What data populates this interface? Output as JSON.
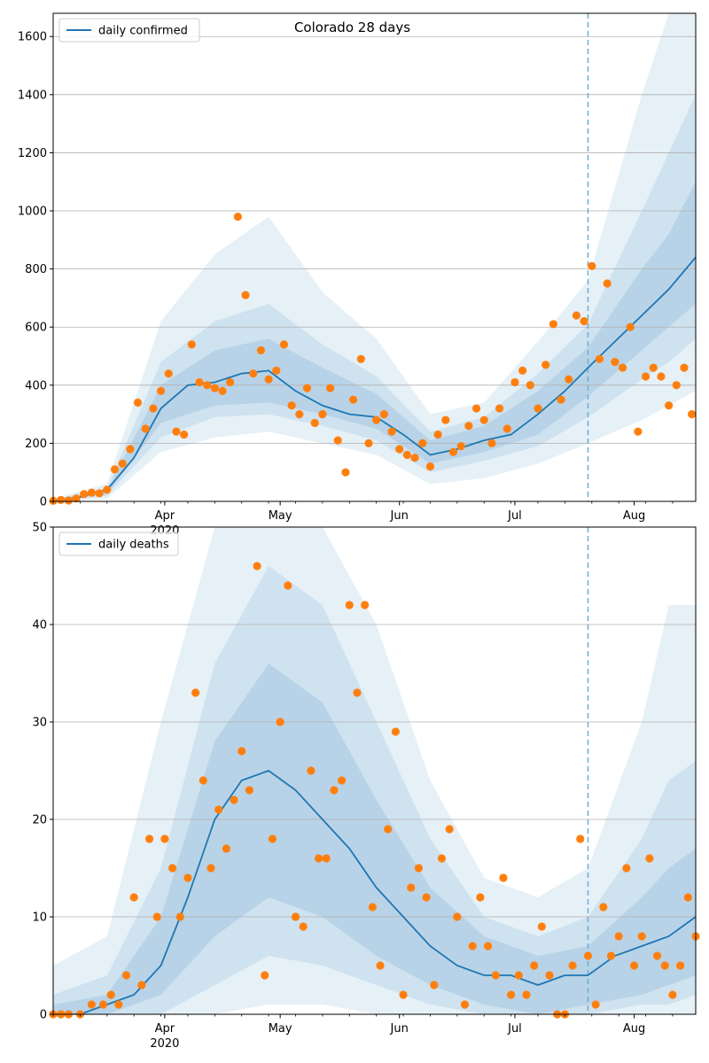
{
  "figure": {
    "title": "Colorado 28 days"
  },
  "colors": {
    "model_line": "#1f77b4",
    "observed_points": "#ff7f0e",
    "band_fill": "#1f77b4",
    "grid": "#b0b0b0",
    "marker_line": "#6baed6"
  },
  "chart_data": [
    {
      "type": "line",
      "panel": "top",
      "title": "Colorado 28 days",
      "xlabel": "",
      "ylabel": "",
      "ylim": [
        0,
        1680
      ],
      "yticks": [
        0,
        200,
        400,
        600,
        800,
        1000,
        1200,
        1400,
        1600
      ],
      "xlim": [
        "2020-03-03",
        "2020-08-17"
      ],
      "xticks": [
        {
          "date": "2020-04-01",
          "label": "Apr",
          "sublabel": "2020"
        },
        {
          "date": "2020-05-01",
          "label": "May",
          "sublabel": ""
        },
        {
          "date": "2020-06-01",
          "label": "Jun",
          "sublabel": ""
        },
        {
          "date": "2020-07-01",
          "label": "Jul",
          "sublabel": ""
        },
        {
          "date": "2020-08-01",
          "label": "Aug",
          "sublabel": ""
        }
      ],
      "grid": "y",
      "legend": {
        "placement": "upper-left",
        "entries": [
          "daily confirmed"
        ]
      },
      "forecast_start": "2020-07-20",
      "median": {
        "name": "daily confirmed",
        "x": [
          "2020-03-03",
          "2020-03-10",
          "2020-03-17",
          "2020-03-24",
          "2020-03-31",
          "2020-04-07",
          "2020-04-14",
          "2020-04-21",
          "2020-04-28",
          "2020-05-05",
          "2020-05-12",
          "2020-05-19",
          "2020-05-26",
          "2020-06-02",
          "2020-06-09",
          "2020-06-16",
          "2020-06-23",
          "2020-06-30",
          "2020-07-07",
          "2020-07-14",
          "2020-07-20",
          "2020-07-27",
          "2020-08-03",
          "2020-08-10",
          "2020-08-17"
        ],
        "y": [
          2,
          15,
          40,
          150,
          320,
          400,
          410,
          440,
          450,
          380,
          330,
          300,
          290,
          230,
          160,
          180,
          210,
          230,
          300,
          380,
          460,
          550,
          640,
          730,
          840
        ]
      },
      "bands": [
        {
          "label": "outer",
          "x": [
            "2020-03-03",
            "2020-03-17",
            "2020-03-31",
            "2020-04-14",
            "2020-04-28",
            "2020-05-12",
            "2020-05-26",
            "2020-06-09",
            "2020-06-23",
            "2020-07-07",
            "2020-07-20",
            "2020-08-03",
            "2020-08-10",
            "2020-08-17"
          ],
          "upper": [
            10,
            60,
            620,
            850,
            980,
            720,
            560,
            300,
            340,
            550,
            760,
            1400,
            1680,
            1680
          ],
          "lower": [
            0,
            10,
            170,
            220,
            240,
            200,
            160,
            60,
            80,
            130,
            200,
            280,
            330,
            380
          ]
        },
        {
          "label": "middle",
          "x": [
            "2020-03-03",
            "2020-03-17",
            "2020-03-31",
            "2020-04-14",
            "2020-04-28",
            "2020-05-12",
            "2020-05-26",
            "2020-06-09",
            "2020-06-23",
            "2020-07-07",
            "2020-07-20",
            "2020-08-03",
            "2020-08-10",
            "2020-08-17"
          ],
          "upper": [
            6,
            45,
            480,
            620,
            680,
            540,
            430,
            240,
            290,
            440,
            610,
            1000,
            1200,
            1400
          ],
          "lower": [
            0,
            20,
            220,
            290,
            300,
            260,
            210,
            100,
            140,
            190,
            290,
            420,
            480,
            560
          ]
        },
        {
          "label": "inner",
          "x": [
            "2020-03-03",
            "2020-03-17",
            "2020-03-31",
            "2020-04-14",
            "2020-04-28",
            "2020-05-12",
            "2020-05-26",
            "2020-06-09",
            "2020-06-23",
            "2020-07-07",
            "2020-07-20",
            "2020-08-03",
            "2020-08-10",
            "2020-08-17"
          ],
          "upper": [
            4,
            35,
            400,
            520,
            560,
            460,
            370,
            210,
            260,
            380,
            530,
            800,
            920,
            1100
          ],
          "lower": [
            1,
            25,
            270,
            330,
            340,
            300,
            250,
            130,
            170,
            230,
            360,
            520,
            600,
            680
          ]
        }
      ],
      "observed": {
        "x": [
          "2020-03-03",
          "2020-03-05",
          "2020-03-07",
          "2020-03-09",
          "2020-03-11",
          "2020-03-13",
          "2020-03-15",
          "2020-03-17",
          "2020-03-19",
          "2020-03-21",
          "2020-03-23",
          "2020-03-25",
          "2020-03-27",
          "2020-03-29",
          "2020-03-31",
          "2020-04-02",
          "2020-04-04",
          "2020-04-06",
          "2020-04-08",
          "2020-04-10",
          "2020-04-12",
          "2020-04-14",
          "2020-04-16",
          "2020-04-18",
          "2020-04-20",
          "2020-04-22",
          "2020-04-24",
          "2020-04-26",
          "2020-04-28",
          "2020-04-30",
          "2020-05-02",
          "2020-05-04",
          "2020-05-06",
          "2020-05-08",
          "2020-05-10",
          "2020-05-12",
          "2020-05-14",
          "2020-05-16",
          "2020-05-18",
          "2020-05-20",
          "2020-05-22",
          "2020-05-24",
          "2020-05-26",
          "2020-05-28",
          "2020-05-30",
          "2020-06-01",
          "2020-06-03",
          "2020-06-05",
          "2020-06-07",
          "2020-06-09",
          "2020-06-11",
          "2020-06-13",
          "2020-06-15",
          "2020-06-17",
          "2020-06-19",
          "2020-06-21",
          "2020-06-23",
          "2020-06-25",
          "2020-06-27",
          "2020-06-29",
          "2020-07-01",
          "2020-07-03",
          "2020-07-05",
          "2020-07-07",
          "2020-07-09",
          "2020-07-11",
          "2020-07-13",
          "2020-07-15",
          "2020-07-17",
          "2020-07-19",
          "2020-07-21",
          "2020-07-23",
          "2020-07-25",
          "2020-07-27",
          "2020-07-29",
          "2020-07-31",
          "2020-08-02",
          "2020-08-04",
          "2020-08-06",
          "2020-08-08",
          "2020-08-10",
          "2020-08-12",
          "2020-08-14",
          "2020-08-16"
        ],
        "y": [
          2,
          5,
          3,
          10,
          25,
          30,
          28,
          40,
          110,
          130,
          180,
          340,
          250,
          320,
          380,
          440,
          240,
          230,
          540,
          410,
          400,
          390,
          380,
          410,
          980,
          710,
          440,
          520,
          420,
          450,
          540,
          330,
          300,
          390,
          270,
          300,
          390,
          210,
          100,
          350,
          490,
          200,
          280,
          300,
          240,
          180,
          160,
          150,
          200,
          120,
          230,
          280,
          170,
          190,
          260,
          320,
          280,
          200,
          320,
          250,
          410,
          450,
          400,
          320,
          470,
          610,
          350,
          420,
          640,
          620,
          810,
          490,
          750,
          480,
          460,
          600,
          240,
          430,
          460,
          430,
          330,
          400,
          460,
          300
        ]
      }
    },
    {
      "type": "line",
      "panel": "bottom",
      "xlabel": "",
      "ylabel": "",
      "ylim": [
        0,
        50
      ],
      "yticks": [
        0,
        10,
        20,
        30,
        40,
        50
      ],
      "xlim": [
        "2020-03-03",
        "2020-08-17"
      ],
      "xticks": [
        {
          "date": "2020-04-01",
          "label": "Apr",
          "sublabel": "2020"
        },
        {
          "date": "2020-05-01",
          "label": "May",
          "sublabel": ""
        },
        {
          "date": "2020-06-01",
          "label": "Jun",
          "sublabel": ""
        },
        {
          "date": "2020-07-01",
          "label": "Jul",
          "sublabel": ""
        },
        {
          "date": "2020-08-01",
          "label": "Aug",
          "sublabel": ""
        }
      ],
      "grid": "y",
      "legend": {
        "placement": "upper-left",
        "entries": [
          "daily deaths"
        ]
      },
      "forecast_start": "2020-07-20",
      "median": {
        "name": "daily deaths",
        "x": [
          "2020-03-03",
          "2020-03-10",
          "2020-03-17",
          "2020-03-24",
          "2020-03-31",
          "2020-04-07",
          "2020-04-14",
          "2020-04-21",
          "2020-04-28",
          "2020-05-05",
          "2020-05-12",
          "2020-05-19",
          "2020-05-26",
          "2020-06-02",
          "2020-06-09",
          "2020-06-16",
          "2020-06-23",
          "2020-06-30",
          "2020-07-07",
          "2020-07-14",
          "2020-07-20",
          "2020-07-27",
          "2020-08-03",
          "2020-08-10",
          "2020-08-17"
        ],
        "y": [
          0,
          0,
          1,
          2,
          5,
          12,
          20,
          24,
          25,
          23,
          20,
          17,
          13,
          10,
          7,
          5,
          4,
          4,
          3,
          4,
          4,
          6,
          7,
          8,
          10
        ]
      },
      "bands": [
        {
          "label": "outer",
          "x": [
            "2020-03-03",
            "2020-03-17",
            "2020-03-31",
            "2020-04-14",
            "2020-04-28",
            "2020-05-12",
            "2020-05-26",
            "2020-06-09",
            "2020-06-23",
            "2020-07-07",
            "2020-07-20",
            "2020-08-03",
            "2020-08-10",
            "2020-08-17"
          ],
          "upper": [
            5,
            8,
            30,
            50,
            50,
            50,
            40,
            24,
            14,
            12,
            15,
            30,
            42,
            42
          ],
          "lower": [
            0,
            0,
            0,
            0,
            1,
            1,
            0,
            0,
            0,
            0,
            0,
            0,
            0,
            0
          ]
        },
        {
          "label": "middle",
          "x": [
            "2020-03-03",
            "2020-03-17",
            "2020-03-31",
            "2020-04-14",
            "2020-04-28",
            "2020-05-12",
            "2020-05-26",
            "2020-06-09",
            "2020-06-23",
            "2020-07-07",
            "2020-07-20",
            "2020-08-03",
            "2020-08-10",
            "2020-08-17"
          ],
          "upper": [
            2,
            4,
            15,
            36,
            46,
            42,
            30,
            18,
            10,
            8,
            10,
            18,
            24,
            26
          ],
          "lower": [
            0,
            0,
            0,
            3,
            6,
            5,
            3,
            1,
            0,
            0,
            0,
            1,
            1,
            2
          ]
        },
        {
          "label": "inner",
          "x": [
            "2020-03-03",
            "2020-03-17",
            "2020-03-31",
            "2020-04-14",
            "2020-04-28",
            "2020-05-12",
            "2020-05-26",
            "2020-06-09",
            "2020-06-23",
            "2020-07-07",
            "2020-07-20",
            "2020-08-03",
            "2020-08-10",
            "2020-08-17"
          ],
          "upper": [
            1,
            2,
            10,
            28,
            36,
            32,
            22,
            13,
            8,
            6,
            7,
            12,
            15,
            17
          ],
          "lower": [
            0,
            0,
            2,
            8,
            12,
            10,
            6,
            3,
            1,
            0,
            1,
            2,
            3,
            4
          ]
        }
      ],
      "observed": {
        "x": [
          "2020-03-03",
          "2020-03-05",
          "2020-03-07",
          "2020-03-10",
          "2020-03-13",
          "2020-03-16",
          "2020-03-18",
          "2020-03-20",
          "2020-03-22",
          "2020-03-24",
          "2020-03-26",
          "2020-03-28",
          "2020-03-30",
          "2020-04-01",
          "2020-04-03",
          "2020-04-05",
          "2020-04-07",
          "2020-04-09",
          "2020-04-11",
          "2020-04-13",
          "2020-04-15",
          "2020-04-17",
          "2020-04-19",
          "2020-04-21",
          "2020-04-23",
          "2020-04-25",
          "2020-04-27",
          "2020-04-29",
          "2020-05-01",
          "2020-05-03",
          "2020-05-05",
          "2020-05-07",
          "2020-05-09",
          "2020-05-11",
          "2020-05-13",
          "2020-05-15",
          "2020-05-17",
          "2020-05-19",
          "2020-05-21",
          "2020-05-23",
          "2020-05-25",
          "2020-05-27",
          "2020-05-29",
          "2020-05-31",
          "2020-06-02",
          "2020-06-04",
          "2020-06-06",
          "2020-06-08",
          "2020-06-10",
          "2020-06-12",
          "2020-06-14",
          "2020-06-16",
          "2020-06-18",
          "2020-06-20",
          "2020-06-22",
          "2020-06-24",
          "2020-06-26",
          "2020-06-28",
          "2020-06-30",
          "2020-07-02",
          "2020-07-04",
          "2020-07-06",
          "2020-07-08",
          "2020-07-10",
          "2020-07-12",
          "2020-07-14",
          "2020-07-16",
          "2020-07-18",
          "2020-07-20",
          "2020-07-22",
          "2020-07-24",
          "2020-07-26",
          "2020-07-28",
          "2020-07-30",
          "2020-08-01",
          "2020-08-03",
          "2020-08-05",
          "2020-08-07",
          "2020-08-09",
          "2020-08-11",
          "2020-08-13",
          "2020-08-15",
          "2020-08-17"
        ],
        "y": [
          0,
          0,
          0,
          0,
          1,
          1,
          2,
          1,
          4,
          12,
          3,
          18,
          10,
          18,
          15,
          10,
          14,
          33,
          24,
          15,
          21,
          17,
          22,
          27,
          23,
          46,
          4,
          18,
          30,
          44,
          10,
          9,
          25,
          16,
          16,
          23,
          24,
          42,
          33,
          42,
          11,
          5,
          19,
          29,
          2,
          13,
          15,
          12,
          3,
          16,
          19,
          10,
          1,
          7,
          12,
          7,
          4,
          14,
          2,
          4,
          2,
          5,
          9,
          4,
          0,
          0,
          5,
          18,
          6,
          1,
          11,
          6,
          8,
          15,
          5,
          8,
          16,
          6,
          5,
          2,
          5,
          12,
          8
        ]
      }
    }
  ]
}
